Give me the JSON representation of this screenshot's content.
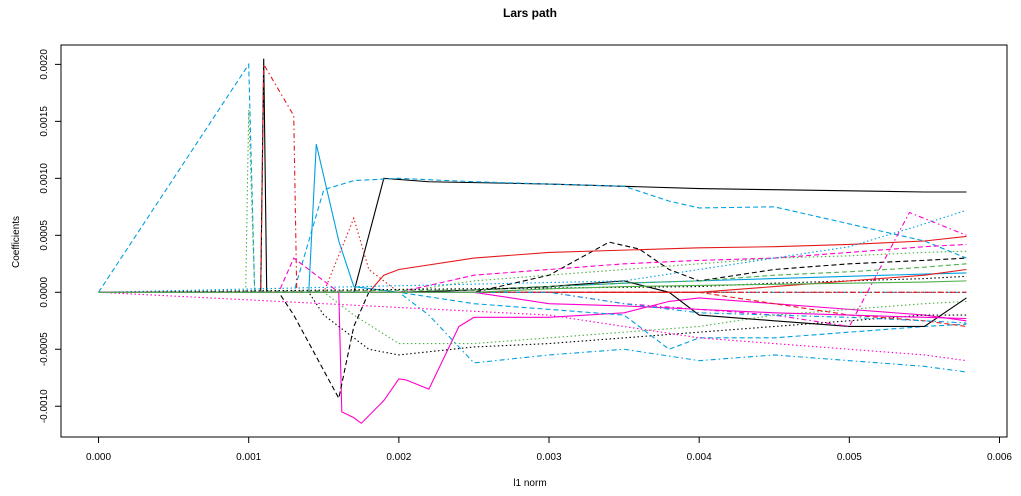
{
  "chart_data": {
    "type": "line",
    "title": "Lars path",
    "xlabel": "l1 norm",
    "ylabel": "Coefficients",
    "xlim": [
      -0.00025,
      0.00605
    ],
    "ylim": [
      -0.00127,
      0.00217
    ],
    "x_ticks": [
      0.0,
      0.001,
      0.002,
      0.003,
      0.004,
      0.005,
      0.006
    ],
    "x_tick_labels": [
      "0.000",
      "0.001",
      "0.002",
      "0.003",
      "0.004",
      "0.005",
      "0.006"
    ],
    "y_ticks": [
      -0.001,
      -0.0005,
      0.0,
      0.0005,
      0.001,
      0.0015,
      0.002
    ],
    "y_tick_labels": [
      "-0.0010",
      "-0.0005",
      "0.0000",
      "0.0005",
      "0.0010",
      "0.0015",
      "0.0020"
    ],
    "grid": false,
    "legend": "none",
    "series": [
      {
        "color": "#00A0E0",
        "dash": "dashed",
        "x": [
          0.0,
          0.001,
          0.00104,
          0.00106,
          0.0012,
          0.0015,
          0.002,
          0.003,
          0.0035,
          0.004,
          0.0045,
          0.005,
          0.0055,
          0.00578
        ],
        "y": [
          0.0,
          0.002,
          0.0,
          0.0,
          0.0,
          0.0,
          0.0,
          0.0,
          0.0,
          0.0,
          0.0,
          0.0,
          0.0,
          0.0
        ]
      },
      {
        "color": "#000000",
        "dash": "solid",
        "x": [
          0.0,
          0.00108,
          0.0011,
          0.00112,
          0.0017,
          0.0019,
          0.0022,
          0.003,
          0.0035,
          0.004,
          0.0045,
          0.005,
          0.0055,
          0.00578
        ],
        "y": [
          0.0,
          0.0,
          0.00205,
          0.0,
          0.0,
          0.001,
          0.00097,
          0.00095,
          0.00093,
          0.00091,
          0.0009,
          0.00089,
          0.00088,
          0.00088
        ]
      },
      {
        "color": "#00A0E0",
        "dash": "dashed",
        "x": [
          0.0,
          0.0013,
          0.0015,
          0.0017,
          0.002,
          0.0025,
          0.003,
          0.0035,
          0.0038,
          0.004,
          0.0045,
          0.005,
          0.0055,
          0.00578
        ],
        "y": [
          0.0,
          0.0,
          0.0009,
          0.00098,
          0.001,
          0.00097,
          0.00095,
          0.00093,
          0.0008,
          0.00074,
          0.00075,
          0.0006,
          0.00045,
          0.0003
        ]
      },
      {
        "color": "#00A0E0",
        "dash": "solid",
        "x": [
          0.0,
          0.0014,
          0.00145,
          0.0016,
          0.0017,
          0.002,
          0.0025,
          0.003,
          0.0035,
          0.004,
          0.0045,
          0.005,
          0.0055,
          0.00578
        ],
        "y": [
          0.0,
          0.0,
          0.0013,
          0.00045,
          5e-05,
          0.0,
          2e-05,
          5e-05,
          8e-05,
          0.0001,
          0.00012,
          0.00014,
          0.00016,
          0.00017
        ]
      },
      {
        "color": "#E41A1C",
        "dash": "dotdash",
        "x": [
          0.0,
          0.00108,
          0.0011,
          0.0013,
          0.00132,
          0.0015,
          0.002,
          0.003,
          0.004,
          0.005,
          0.00578
        ],
        "y": [
          0.0,
          0.0,
          0.002,
          0.00155,
          0.0,
          0.0,
          0.0,
          0.0,
          0.0,
          0.0,
          0.0
        ]
      },
      {
        "color": "#E41A1C",
        "dash": "dotted",
        "x": [
          0.0,
          0.0015,
          0.0017,
          0.0018,
          0.002,
          0.0025,
          0.003,
          0.004,
          0.005,
          0.00578
        ],
        "y": [
          0.0,
          0.0,
          0.00065,
          0.0002,
          0.0,
          0.0,
          0.0,
          0.0,
          0.0,
          0.0
        ]
      },
      {
        "color": "#FF00CC",
        "dash": "solid",
        "x": [
          0.0,
          0.0016,
          0.00162,
          0.0017,
          0.00175,
          0.0019,
          0.002,
          0.00205,
          0.0022,
          0.0024,
          0.0025,
          0.003,
          0.0035,
          0.0038,
          0.004,
          0.0045,
          0.005,
          0.0055,
          0.00578
        ],
        "y": [
          0.0,
          0.0,
          -0.00105,
          -0.0011,
          -0.00115,
          -0.00095,
          -0.00076,
          -0.00077,
          -0.00085,
          -0.0003,
          -0.00022,
          -0.00022,
          -0.00018,
          -8e-05,
          -5e-05,
          -0.0001,
          -0.00015,
          -0.0002,
          -0.00025
        ]
      },
      {
        "color": "#000000",
        "dash": "dashed",
        "x": [
          0.0,
          0.0012,
          0.0013,
          0.0016,
          0.0017,
          0.0018,
          0.002,
          0.0025,
          0.003,
          0.0034,
          0.0036,
          0.0038,
          0.004,
          0.0045,
          0.005,
          0.0055,
          0.00578
        ],
        "y": [
          0.0,
          0.0,
          -0.0002,
          -0.00093,
          -0.0003,
          0.0,
          0.0,
          0.0,
          0.00015,
          0.00044,
          0.00038,
          0.0002,
          0.0001,
          0.0002,
          0.00025,
          0.00028,
          0.0003
        ]
      },
      {
        "color": "#000000",
        "dash": "dotted",
        "x": [
          0.0,
          0.0014,
          0.0015,
          0.0018,
          0.002,
          0.0025,
          0.003,
          0.0035,
          0.004,
          0.0045,
          0.005,
          0.0055,
          0.00578
        ],
        "y": [
          0.0,
          0.0,
          -0.0002,
          -0.0005,
          -0.00055,
          -0.00048,
          -0.00045,
          -0.0004,
          -0.00035,
          -0.0003,
          -0.00025,
          -0.0002,
          -0.0002
        ]
      },
      {
        "color": "#4DAF4A",
        "dash": "dotted",
        "x": [
          0.0,
          0.00098,
          0.001,
          0.00104,
          0.0015,
          0.0017,
          0.002,
          0.0025,
          0.003,
          0.0035,
          0.004,
          0.0045,
          0.005,
          0.0055,
          0.00578
        ],
        "y": [
          0.0,
          0.0,
          0.0016,
          0.0,
          0.0,
          -0.0002,
          -0.00045,
          -0.00045,
          -0.0004,
          -0.00035,
          -0.0003,
          -0.0002,
          -0.00015,
          -0.0001,
          -8e-05
        ]
      },
      {
        "color": "#E41A1C",
        "dash": "solid",
        "x": [
          0.0,
          0.0018,
          0.0019,
          0.002,
          0.0025,
          0.003,
          0.0035,
          0.004,
          0.0045,
          0.005,
          0.0055,
          0.00578
        ],
        "y": [
          0.0,
          0.0,
          0.00015,
          0.0002,
          0.0003,
          0.00035,
          0.00037,
          0.00039,
          0.0004,
          0.00042,
          0.00045,
          0.00049
        ]
      },
      {
        "color": "#FF00CC",
        "dash": "dashed",
        "x": [
          0.0,
          0.0012,
          0.0013,
          0.0016,
          0.002,
          0.0025,
          0.003,
          0.0035,
          0.004,
          0.0045,
          0.005,
          0.0055,
          0.00578
        ],
        "y": [
          0.0,
          0.0,
          0.0003,
          0.0,
          0.0,
          0.00015,
          0.0002,
          0.00025,
          0.00028,
          0.0003,
          0.00035,
          0.0004,
          0.00042
        ]
      },
      {
        "color": "#00A0E0",
        "dash": "dotdash",
        "x": [
          0.0,
          0.002,
          0.0022,
          0.0025,
          0.003,
          0.0035,
          0.004,
          0.0045,
          0.005,
          0.0055,
          0.00578
        ],
        "y": [
          0.0,
          0.0,
          -0.0002,
          -0.00062,
          -0.00055,
          -0.0005,
          -0.0006,
          -0.00055,
          -0.0006,
          -0.00065,
          -0.0007
        ]
      },
      {
        "color": "#4DAF4A",
        "dash": "dotted",
        "x": [
          0.0,
          0.002,
          0.0025,
          0.003,
          0.0035,
          0.004,
          0.0045,
          0.005,
          0.0055,
          0.00578
        ],
        "y": [
          0.0,
          0.0,
          0.0001,
          0.00015,
          0.0002,
          0.00025,
          0.0003,
          0.00032,
          0.00035,
          0.00036
        ]
      },
      {
        "color": "#00A0E0",
        "dash": "dashed",
        "x": [
          0.0,
          0.002,
          0.0025,
          0.003,
          0.0035,
          0.0038,
          0.004,
          0.0045,
          0.005,
          0.0055,
          0.00578
        ],
        "y": [
          0.0,
          0.0,
          -0.0001,
          -0.00015,
          -0.0002,
          -0.0005,
          -0.0004,
          -0.0004,
          -0.00035,
          -0.0003,
          -0.00028
        ]
      },
      {
        "color": "#000000",
        "dash": "solid",
        "x": [
          0.0,
          0.002,
          0.0025,
          0.003,
          0.0035,
          0.0038,
          0.004,
          0.0045,
          0.005,
          0.0055,
          0.00578
        ],
        "y": [
          0.0,
          0.0,
          2e-05,
          5e-05,
          0.0001,
          0.0,
          -0.0002,
          -0.00025,
          -0.0003,
          -0.0003,
          -5e-05
        ]
      },
      {
        "color": "#FF00CC",
        "dash": "dotdash",
        "x": [
          0.0,
          0.003,
          0.0035,
          0.004,
          0.0045,
          0.005,
          0.0054,
          0.00578
        ],
        "y": [
          0.0,
          0.0,
          -0.0001,
          -0.00015,
          -0.0002,
          -0.0003,
          0.0007,
          0.0005
        ]
      },
      {
        "color": "#FF00CC",
        "dash": "dotted",
        "x": [
          0.0,
          0.003,
          0.0035,
          0.004,
          0.0045,
          0.005,
          0.0055,
          0.00578
        ],
        "y": [
          0.0,
          -0.0002,
          -0.0003,
          -0.0004,
          -0.00045,
          -0.0005,
          -0.00055,
          -0.0006
        ]
      },
      {
        "color": "#4DAF4A",
        "dash": "dashed",
        "x": [
          0.0,
          0.0025,
          0.003,
          0.0035,
          0.004,
          0.0045,
          0.005,
          0.0055,
          0.00578
        ],
        "y": [
          0.0,
          2e-05,
          5e-05,
          8e-05,
          0.0001,
          0.00015,
          0.00018,
          0.00022,
          0.00025
        ]
      },
      {
        "color": "#00A0E0",
        "dash": "dotted",
        "x": [
          0.0,
          0.0035,
          0.004,
          0.0045,
          0.005,
          0.0055,
          0.00578
        ],
        "y": [
          0.0,
          0.0001,
          0.0002,
          0.0003,
          0.0004,
          0.0006,
          0.00072
        ]
      },
      {
        "color": "#000000",
        "dash": "dotted",
        "x": [
          0.0,
          0.004,
          0.0045,
          0.005,
          0.0055,
          0.00578
        ],
        "y": [
          0.0,
          5e-05,
          8e-05,
          0.0001,
          0.00012,
          0.00014
        ]
      },
      {
        "color": "#E41A1C",
        "dash": "dashed",
        "x": [
          0.0,
          0.004,
          0.0045,
          0.005,
          0.0055,
          0.00578
        ],
        "y": [
          0.0,
          0.0,
          -0.0001,
          -0.0002,
          -0.00025,
          -0.0003
        ]
      },
      {
        "color": "#E41A1C",
        "dash": "solid",
        "x": [
          0.0,
          0.004,
          0.0045,
          0.005,
          0.0055,
          0.00578
        ],
        "y": [
          0.0,
          0.0,
          5e-05,
          0.0001,
          0.00015,
          0.0002
        ]
      },
      {
        "color": "#FF00CC",
        "dash": "solid",
        "x": [
          0.0,
          0.0025,
          0.003,
          0.0035,
          0.004,
          0.0045,
          0.005,
          0.0055,
          0.00578
        ],
        "y": [
          0.0,
          0.0,
          -0.0001,
          -0.00012,
          -0.00015,
          -0.00018,
          -0.0002,
          -0.00022,
          -0.00023
        ]
      },
      {
        "color": "#00A0E0",
        "dash": "dotdash",
        "x": [
          0.0,
          0.003,
          0.0035,
          0.004,
          0.0045,
          0.005,
          0.0055,
          0.00578
        ],
        "y": [
          0.0,
          0.0,
          -0.0001,
          -0.00018,
          -0.0002,
          -0.00022,
          -0.00025,
          -0.00027
        ]
      },
      {
        "color": "#4DAF4A",
        "dash": "solid",
        "x": [
          0.0,
          0.0025,
          0.003,
          0.0035,
          0.004,
          0.0045,
          0.005,
          0.0055,
          0.00578
        ],
        "y": [
          0.0,
          0.0,
          3e-05,
          5e-05,
          6e-05,
          7e-05,
          8e-05,
          9e-05,
          0.0001
        ]
      }
    ]
  }
}
